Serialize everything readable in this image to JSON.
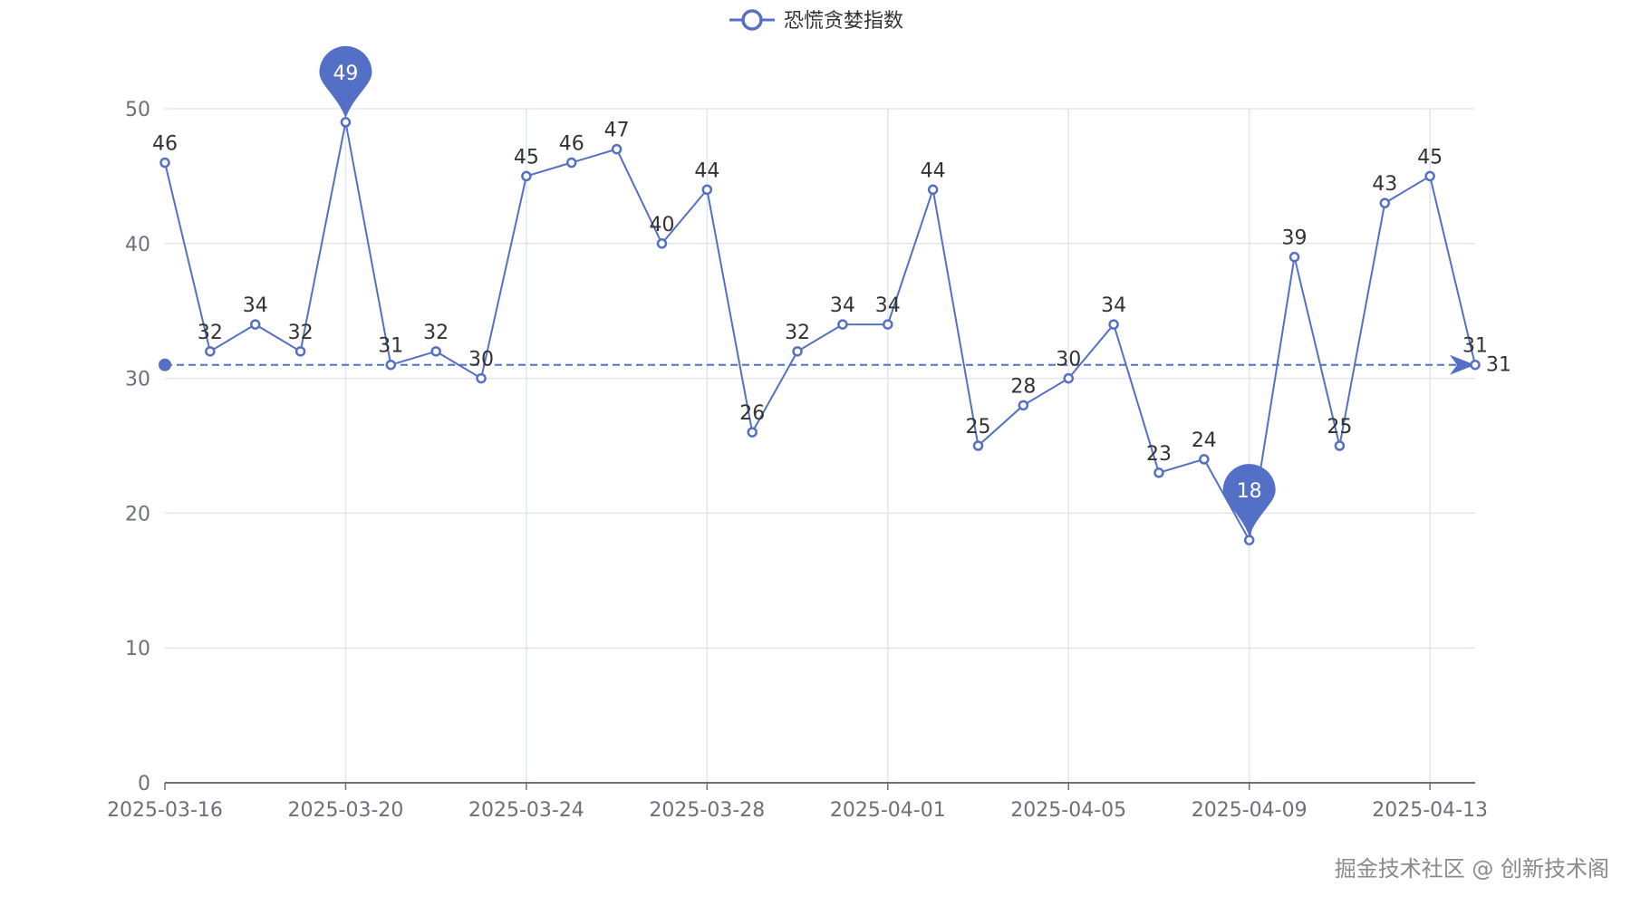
{
  "chart_data": {
    "type": "line",
    "legend": {
      "position": "top-center",
      "entries": [
        "恐慌贪婪指数"
      ]
    },
    "x": [
      "2025-03-16",
      "2025-03-17",
      "2025-03-18",
      "2025-03-19",
      "2025-03-20",
      "2025-03-21",
      "2025-03-22",
      "2025-03-23",
      "2025-03-24",
      "2025-03-25",
      "2025-03-26",
      "2025-03-27",
      "2025-03-28",
      "2025-03-29",
      "2025-03-30",
      "2025-03-31",
      "2025-04-01",
      "2025-04-02",
      "2025-04-03",
      "2025-04-04",
      "2025-04-05",
      "2025-04-06",
      "2025-04-07",
      "2025-04-08",
      "2025-04-09",
      "2025-04-10",
      "2025-04-11",
      "2025-04-12",
      "2025-04-13",
      "2025-04-14"
    ],
    "x_tick_labels": [
      "2025-03-16",
      "2025-03-20",
      "2025-03-24",
      "2025-03-28",
      "2025-04-01",
      "2025-04-05",
      "2025-04-09",
      "2025-04-13"
    ],
    "series": [
      {
        "name": "恐慌贪婪指数",
        "color": "#5470c6",
        "values": [
          46,
          32,
          34,
          32,
          49,
          31,
          32,
          30,
          45,
          46,
          47,
          40,
          44,
          26,
          32,
          34,
          34,
          44,
          25,
          28,
          30,
          34,
          23,
          24,
          18,
          39,
          25,
          43,
          45,
          31
        ]
      }
    ],
    "y_ticks": [
      0,
      10,
      20,
      30,
      40,
      50
    ],
    "ylim": [
      0,
      50
    ],
    "grid": true,
    "mark_points": [
      {
        "type": "max",
        "x": "2025-03-20",
        "value": 49
      },
      {
        "type": "min",
        "x": "2025-04-09",
        "value": 18
      }
    ],
    "mark_line": {
      "type": "latest",
      "value": 31,
      "label": "31"
    },
    "xlabel": "",
    "ylabel": "",
    "title": ""
  },
  "watermark": "掘金技术社区 @ 创新技术阁"
}
